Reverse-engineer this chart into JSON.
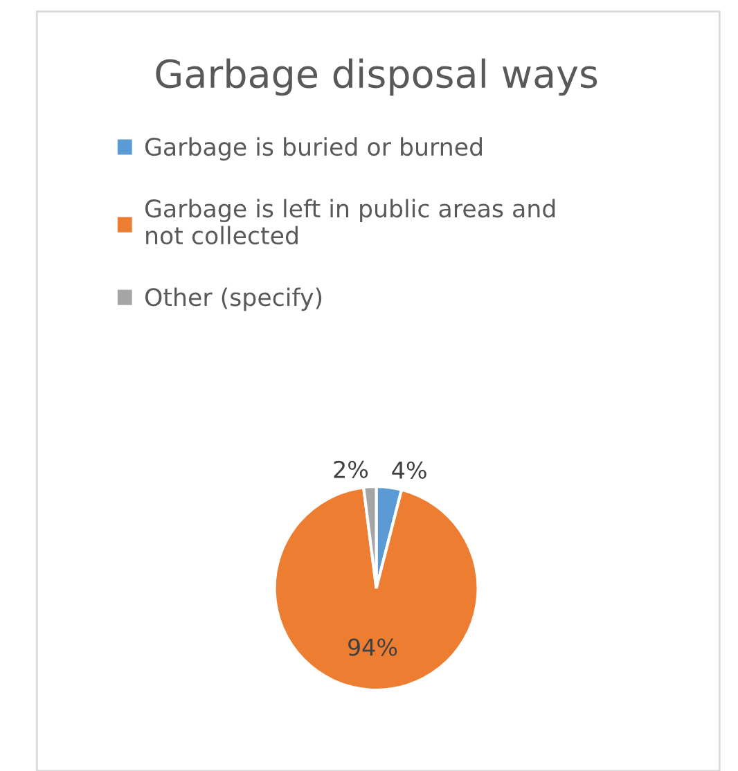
{
  "chart_data": {
    "type": "pie",
    "title": "Garbage disposal ways",
    "categories": [
      "Garbage is buried or burned",
      "Garbage is left in public areas and not collected",
      "Other (specify)"
    ],
    "values": [
      4,
      94,
      2
    ],
    "colors": [
      "#5b9bd5",
      "#ed7d31",
      "#a5a5a5"
    ],
    "value_labels": [
      "4%",
      "94%",
      "2%"
    ],
    "legend": "top"
  }
}
